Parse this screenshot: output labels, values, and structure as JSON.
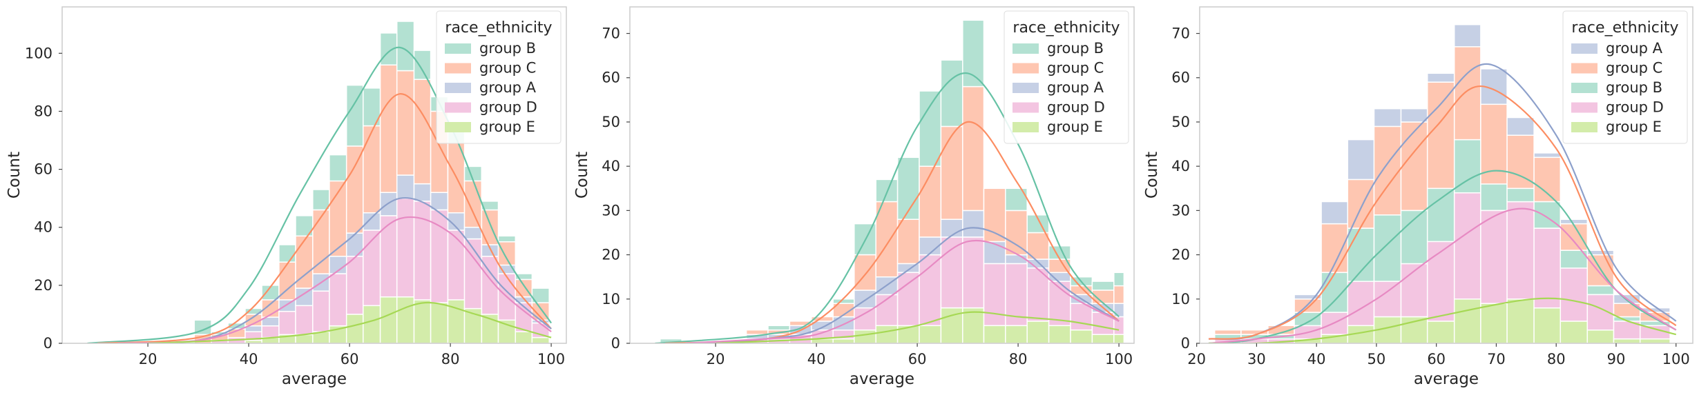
{
  "colors": {
    "group A": "#8da0cb",
    "group B": "#66c2a5",
    "group C": "#fc8d62",
    "group D": "#e78ac3",
    "group E": "#a6d854"
  },
  "chart_data": [
    {
      "type": "stacked-histogram",
      "xlabel": "average",
      "ylabel": "Count",
      "xlim": [
        3,
        103
      ],
      "ylim": [
        0,
        116
      ],
      "xticks": [
        20,
        40,
        60,
        80,
        100
      ],
      "yticks": [
        0,
        20,
        40,
        60,
        80,
        100
      ],
      "grid": false,
      "legend": {
        "title": "race_ethnicity",
        "placement": "top-right",
        "entries": [
          "group B",
          "group C",
          "group A",
          "group D",
          "group E"
        ]
      },
      "bin_edges": [
        29.2,
        32.6,
        35.9,
        39.3,
        42.6,
        46.0,
        49.3,
        52.7,
        56.0,
        59.4,
        62.7,
        66.1,
        69.4,
        72.8,
        76.1,
        79.5,
        82.8,
        86.2,
        89.5,
        92.9,
        96.2,
        99.6
      ],
      "stack_order": [
        "group E",
        "group D",
        "group A",
        "group C",
        "group B"
      ],
      "series": [
        {
          "name": "group E",
          "values": [
            0,
            0,
            0,
            1,
            2,
            3,
            3,
            4,
            6,
            10,
            13,
            16,
            16,
            15,
            14,
            15,
            12,
            10,
            8,
            4,
            2
          ]
        },
        {
          "name": "group D",
          "values": [
            0,
            1,
            2,
            3,
            4,
            8,
            10,
            14,
            18,
            20,
            26,
            28,
            34,
            34,
            32,
            24,
            24,
            20,
            16,
            10,
            5
          ]
        },
        {
          "name": "group A",
          "values": [
            0,
            0,
            0,
            2,
            3,
            4,
            6,
            6,
            6,
            8,
            6,
            8,
            8,
            6,
            6,
            6,
            4,
            4,
            3,
            2,
            1
          ]
        },
        {
          "name": "group C",
          "values": [
            3,
            2,
            3,
            4,
            6,
            13,
            18,
            22,
            26,
            30,
            30,
            44,
            36,
            36,
            28,
            24,
            16,
            12,
            8,
            6,
            6
          ]
        },
        {
          "name": "group B",
          "values": [
            5,
            1,
            2,
            2,
            5,
            6,
            7,
            7,
            9,
            21,
            13,
            11,
            17,
            10,
            5,
            6,
            5,
            3,
            2,
            2,
            5
          ]
        }
      ],
      "kde": [
        {
          "name": "group B",
          "x": [
            8,
            30,
            40,
            50,
            60,
            70,
            80,
            90,
            100
          ],
          "y": [
            0,
            4,
            19,
            51,
            80,
            102,
            75,
            33,
            7
          ]
        },
        {
          "name": "group C",
          "x": [
            10,
            30,
            40,
            50,
            60,
            70,
            80,
            90,
            100
          ],
          "y": [
            0,
            2,
            11,
            33,
            58,
            86,
            61,
            26,
            5
          ]
        },
        {
          "name": "group A",
          "x": [
            14,
            30,
            40,
            50,
            60,
            70,
            80,
            90,
            100
          ],
          "y": [
            0,
            1,
            8,
            22,
            36,
            50,
            42,
            20,
            5
          ]
        },
        {
          "name": "group D",
          "x": [
            14,
            30,
            40,
            50,
            60,
            70,
            80,
            90,
            100
          ],
          "y": [
            0,
            1,
            6,
            16,
            28,
            43,
            38,
            18,
            4
          ]
        },
        {
          "name": "group E",
          "x": [
            20,
            35,
            45,
            55,
            65,
            75,
            85,
            92,
            100
          ],
          "y": [
            0,
            1,
            2,
            4,
            8,
            14,
            10,
            6,
            2
          ]
        }
      ]
    },
    {
      "type": "stacked-histogram",
      "xlabel": "average",
      "ylabel": "Count",
      "xlim": [
        3,
        103
      ],
      "ylim": [
        0,
        76
      ],
      "xticks": [
        20,
        40,
        60,
        80,
        100
      ],
      "yticks": [
        0,
        10,
        20,
        30,
        40,
        50,
        60,
        70
      ],
      "grid": false,
      "legend": {
        "title": "race_ethnicity",
        "placement": "top-right",
        "entries": [
          "group B",
          "group C",
          "group A",
          "group D",
          "group E"
        ]
      },
      "bin_edges": [
        9.0,
        13.3,
        17.6,
        21.8,
        26.1,
        30.4,
        34.7,
        39.0,
        43.3,
        47.5,
        51.8,
        56.1,
        60.4,
        64.7,
        69.0,
        73.2,
        77.5,
        81.8,
        86.1,
        90.4,
        94.7,
        99.0,
        101.0
      ],
      "stack_order": [
        "group E",
        "group D",
        "group A",
        "group C",
        "group B"
      ],
      "series": [
        {
          "name": "group E",
          "values": [
            0,
            0,
            0,
            0,
            0,
            0,
            0,
            1,
            1,
            3,
            4,
            4,
            4,
            8,
            8,
            4,
            4,
            5,
            4,
            3,
            2,
            2
          ]
        },
        {
          "name": "group D",
          "values": [
            0,
            0,
            0,
            0,
            1,
            1,
            2,
            2,
            2,
            5,
            7,
            12,
            16,
            16,
            16,
            14,
            14,
            12,
            10,
            6,
            5,
            4
          ]
        },
        {
          "name": "group A",
          "values": [
            0,
            0,
            0,
            0,
            1,
            1,
            2,
            2,
            3,
            4,
            4,
            2,
            4,
            4,
            6,
            5,
            2,
            2,
            2,
            2,
            2,
            3
          ]
        },
        {
          "name": "group C",
          "values": [
            0,
            0,
            0,
            0,
            1,
            1,
            1,
            1,
            3,
            8,
            17,
            10,
            16,
            21,
            28,
            12,
            10,
            6,
            3,
            2,
            3,
            4
          ]
        },
        {
          "name": "group B",
          "values": [
            1,
            0,
            0,
            0,
            0,
            1,
            0,
            0,
            1,
            7,
            5,
            14,
            17,
            15,
            15,
            0,
            5,
            4,
            3,
            2,
            2,
            3
          ]
        }
      ],
      "kde": [
        {
          "name": "group B",
          "x": [
            8,
            30,
            40,
            50,
            60,
            70,
            80,
            90,
            100
          ],
          "y": [
            0,
            2,
            6,
            24,
            49,
            61,
            45,
            18,
            6
          ]
        },
        {
          "name": "group C",
          "x": [
            10,
            30,
            40,
            50,
            60,
            70,
            80,
            90,
            100
          ],
          "y": [
            0,
            1,
            5,
            16,
            33,
            50,
            36,
            16,
            5
          ]
        },
        {
          "name": "group A",
          "x": [
            14,
            30,
            40,
            50,
            60,
            70,
            80,
            90,
            100
          ],
          "y": [
            0,
            1,
            3,
            10,
            18,
            26,
            22,
            12,
            5
          ]
        },
        {
          "name": "group D",
          "x": [
            14,
            30,
            40,
            50,
            60,
            70,
            80,
            90,
            100
          ],
          "y": [
            0,
            1,
            2,
            7,
            15,
            23,
            20,
            11,
            5
          ]
        },
        {
          "name": "group E",
          "x": [
            20,
            40,
            50,
            60,
            70,
            80,
            90,
            100
          ],
          "y": [
            0,
            1,
            2,
            4,
            7,
            6,
            5,
            3
          ]
        }
      ]
    },
    {
      "type": "stacked-histogram",
      "xlabel": "average",
      "ylabel": "Count",
      "xlim": [
        20.5,
        102.8
      ],
      "ylim": [
        0,
        76
      ],
      "xticks": [
        20,
        30,
        40,
        50,
        60,
        70,
        80,
        90,
        100
      ],
      "yticks": [
        0,
        10,
        20,
        30,
        40,
        50,
        60,
        70
      ],
      "grid": false,
      "legend": {
        "title": "race_ethnicity",
        "placement": "top-right",
        "entries": [
          "group A",
          "group C",
          "group B",
          "group D",
          "group E"
        ]
      },
      "bin_edges": [
        23.0,
        27.4,
        31.9,
        36.3,
        40.8,
        45.2,
        49.6,
        54.1,
        58.5,
        63.0,
        67.4,
        71.8,
        76.3,
        80.7,
        85.2,
        89.6,
        94.0,
        99.0
      ],
      "stack_order": [
        "group E",
        "group D",
        "group B",
        "group C",
        "group A"
      ],
      "series": [
        {
          "name": "group E",
          "values": [
            0,
            0,
            0,
            1,
            2,
            4,
            6,
            6,
            5,
            10,
            9,
            10,
            8,
            5,
            3,
            1,
            1
          ]
        },
        {
          "name": "group D",
          "values": [
            1,
            1,
            1,
            3,
            5,
            10,
            8,
            12,
            18,
            24,
            21,
            22,
            18,
            12,
            8,
            4,
            3
          ]
        },
        {
          "name": "group B",
          "values": [
            1,
            1,
            1,
            3,
            9,
            12,
            15,
            12,
            12,
            12,
            6,
            3,
            6,
            4,
            2,
            1,
            1
          ]
        },
        {
          "name": "group C",
          "values": [
            1,
            1,
            2,
            3,
            11,
            11,
            20,
            20,
            24,
            21,
            18,
            12,
            10,
            6,
            7,
            3,
            2
          ]
        },
        {
          "name": "group A",
          "values": [
            0,
            0,
            0,
            1,
            5,
            9,
            4,
            3,
            2,
            5,
            8,
            4,
            1,
            1,
            1,
            2,
            1
          ]
        }
      ],
      "kde": [
        {
          "name": "group A",
          "x": [
            22,
            30,
            40,
            50,
            60,
            69,
            80,
            90,
            100
          ],
          "y": [
            1,
            2,
            11,
            37,
            53,
            63,
            47,
            17,
            5
          ]
        },
        {
          "name": "group C",
          "x": [
            22,
            30,
            40,
            50,
            60,
            68,
            80,
            90,
            100
          ],
          "y": [
            1,
            2,
            10,
            32,
            49,
            58,
            44,
            15,
            4
          ]
        },
        {
          "name": "group B",
          "x": [
            22,
            30,
            40,
            50,
            60,
            70,
            80,
            90,
            100
          ],
          "y": [
            0,
            1,
            6,
            20,
            32,
            39,
            32,
            12,
            3
          ]
        },
        {
          "name": "group D",
          "x": [
            22,
            30,
            40,
            50,
            60,
            72,
            80,
            90,
            100
          ],
          "y": [
            0,
            1,
            3,
            10,
            20,
            30,
            27,
            12,
            3
          ]
        },
        {
          "name": "group E",
          "x": [
            22,
            30,
            40,
            50,
            60,
            76,
            85,
            92,
            100
          ],
          "y": [
            0,
            0,
            1,
            3,
            6,
            10,
            9,
            5,
            2
          ]
        }
      ]
    }
  ]
}
